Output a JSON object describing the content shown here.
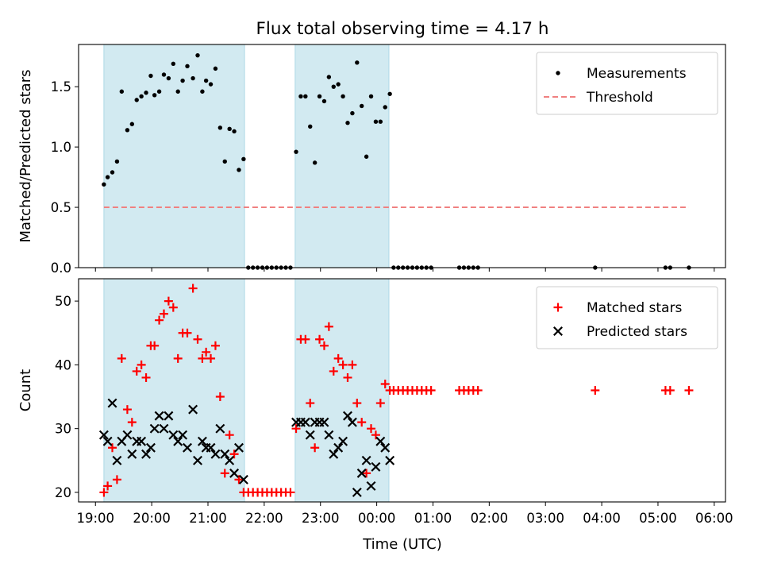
{
  "chart_data": {
    "type": "scatter",
    "title": "Flux total observing time = 4.17 h",
    "xlabel": "Time (UTC)",
    "x_ticks": [
      "19:00",
      "20:00",
      "21:00",
      "22:00",
      "23:00",
      "00:00",
      "01:00",
      "02:00",
      "03:00",
      "04:00",
      "05:00",
      "06:00"
    ],
    "shaded_intervals": [
      {
        "start": "19:09",
        "end": "21:39"
      },
      {
        "start": "22:33",
        "end": "00:13"
      }
    ],
    "shade_color": "#add8e6",
    "panels": [
      {
        "ylabel": "Matched/Predicted stars",
        "ylim": [
          0,
          1.85
        ],
        "y_ticks": [
          "0.0",
          "0.5",
          "1.0",
          "1.5"
        ],
        "legend_position": "upper right",
        "series": [
          {
            "name": "Measurements",
            "marker": "dot",
            "color": "#000000",
            "points": [
              [
                "19:09",
                0.69
              ],
              [
                "19:13",
                0.75
              ],
              [
                "19:18",
                0.79
              ],
              [
                "19:23",
                0.88
              ],
              [
                "19:28",
                1.46
              ],
              [
                "19:34",
                1.14
              ],
              [
                "19:39",
                1.19
              ],
              [
                "19:44",
                1.39
              ],
              [
                "19:49",
                1.42
              ],
              [
                "19:54",
                1.45
              ],
              [
                "19:59",
                1.59
              ],
              [
                "20:03",
                1.43
              ],
              [
                "20:08",
                1.46
              ],
              [
                "20:13",
                1.6
              ],
              [
                "20:18",
                1.57
              ],
              [
                "20:23",
                1.69
              ],
              [
                "20:28",
                1.46
              ],
              [
                "20:33",
                1.55
              ],
              [
                "20:38",
                1.67
              ],
              [
                "20:44",
                1.57
              ],
              [
                "20:49",
                1.76
              ],
              [
                "20:54",
                1.46
              ],
              [
                "20:58",
                1.55
              ],
              [
                "21:03",
                1.52
              ],
              [
                "21:08",
                1.65
              ],
              [
                "21:13",
                1.16
              ],
              [
                "21:18",
                0.88
              ],
              [
                "21:23",
                1.15
              ],
              [
                "21:28",
                1.13
              ],
              [
                "21:33",
                0.81
              ],
              [
                "21:38",
                0.9
              ],
              [
                "21:43",
                0.0
              ],
              [
                "21:48",
                0.0
              ],
              [
                "21:53",
                0.0
              ],
              [
                "21:58",
                0.0
              ],
              [
                "22:03",
                0.0
              ],
              [
                "22:08",
                0.0
              ],
              [
                "22:13",
                0.0
              ],
              [
                "22:18",
                0.0
              ],
              [
                "22:23",
                0.0
              ],
              [
                "22:28",
                0.0
              ],
              [
                "22:34",
                0.96
              ],
              [
                "22:39",
                1.42
              ],
              [
                "22:44",
                1.42
              ],
              [
                "22:49",
                1.17
              ],
              [
                "22:54",
                0.87
              ],
              [
                "22:59",
                1.42
              ],
              [
                "23:04",
                1.38
              ],
              [
                "23:09",
                1.58
              ],
              [
                "23:14",
                1.5
              ],
              [
                "23:19",
                1.52
              ],
              [
                "23:24",
                1.42
              ],
              [
                "23:29",
                1.2
              ],
              [
                "23:34",
                1.28
              ],
              [
                "23:39",
                1.7
              ],
              [
                "23:44",
                1.34
              ],
              [
                "23:49",
                0.92
              ],
              [
                "23:54",
                1.42
              ],
              [
                "23:59",
                1.21
              ],
              [
                "00:04",
                1.21
              ],
              [
                "00:09",
                1.33
              ],
              [
                "00:14",
                1.44
              ],
              [
                "00:18",
                0.0
              ],
              [
                "00:23",
                0.0
              ],
              [
                "00:28",
                0.0
              ],
              [
                "00:33",
                0.0
              ],
              [
                "00:38",
                0.0
              ],
              [
                "00:43",
                0.0
              ],
              [
                "00:48",
                0.0
              ],
              [
                "00:53",
                0.0
              ],
              [
                "00:58",
                0.0
              ],
              [
                "01:28",
                0.0
              ],
              [
                "01:33",
                0.0
              ],
              [
                "01:38",
                0.0
              ],
              [
                "01:43",
                0.0
              ],
              [
                "01:48",
                0.0
              ],
              [
                "03:53",
                0.0
              ],
              [
                "05:08",
                0.0
              ],
              [
                "05:13",
                0.0
              ],
              [
                "05:33",
                0.0
              ]
            ]
          },
          {
            "name": "Threshold",
            "marker": "dashed-line",
            "color": "#f08080",
            "value": 0.5,
            "start": "19:09",
            "end": "05:33"
          }
        ]
      },
      {
        "ylabel": "Count",
        "ylim": [
          18.5,
          53.5
        ],
        "y_ticks": [
          "20",
          "30",
          "40",
          "50"
        ],
        "legend_position": "upper right",
        "series": [
          {
            "name": "Matched stars",
            "marker": "plus",
            "color": "#ff0000",
            "points": [
              [
                "19:09",
                20
              ],
              [
                "19:13",
                21
              ],
              [
                "19:18",
                27
              ],
              [
                "19:23",
                22
              ],
              [
                "19:28",
                41
              ],
              [
                "19:34",
                33
              ],
              [
                "19:39",
                31
              ],
              [
                "19:44",
                39
              ],
              [
                "19:49",
                40
              ],
              [
                "19:54",
                38
              ],
              [
                "19:59",
                43
              ],
              [
                "20:03",
                43
              ],
              [
                "20:08",
                47
              ],
              [
                "20:13",
                48
              ],
              [
                "20:18",
                50
              ],
              [
                "20:23",
                49
              ],
              [
                "20:28",
                41
              ],
              [
                "20:33",
                45
              ],
              [
                "20:38",
                45
              ],
              [
                "20:44",
                52
              ],
              [
                "20:49",
                44
              ],
              [
                "20:54",
                41
              ],
              [
                "20:58",
                42
              ],
              [
                "21:03",
                41
              ],
              [
                "21:08",
                43
              ],
              [
                "21:13",
                35
              ],
              [
                "21:18",
                23
              ],
              [
                "21:23",
                29
              ],
              [
                "21:28",
                26
              ],
              [
                "21:33",
                22
              ],
              [
                "21:38",
                20
              ],
              [
                "21:43",
                20
              ],
              [
                "21:48",
                20
              ],
              [
                "21:53",
                20
              ],
              [
                "21:58",
                20
              ],
              [
                "22:03",
                20
              ],
              [
                "22:08",
                20
              ],
              [
                "22:13",
                20
              ],
              [
                "22:18",
                20
              ],
              [
                "22:23",
                20
              ],
              [
                "22:28",
                20
              ],
              [
                "22:34",
                30
              ],
              [
                "22:39",
                44
              ],
              [
                "22:44",
                44
              ],
              [
                "22:49",
                34
              ],
              [
                "22:54",
                27
              ],
              [
                "22:59",
                44
              ],
              [
                "23:04",
                43
              ],
              [
                "23:09",
                46
              ],
              [
                "23:14",
                39
              ],
              [
                "23:19",
                41
              ],
              [
                "23:24",
                40
              ],
              [
                "23:29",
                38
              ],
              [
                "23:34",
                40
              ],
              [
                "23:39",
                34
              ],
              [
                "23:44",
                31
              ],
              [
                "23:49",
                23
              ],
              [
                "23:54",
                30
              ],
              [
                "23:59",
                29
              ],
              [
                "00:04",
                34
              ],
              [
                "00:09",
                37
              ],
              [
                "00:14",
                36
              ],
              [
                "00:18",
                36
              ],
              [
                "00:23",
                36
              ],
              [
                "00:28",
                36
              ],
              [
                "00:33",
                36
              ],
              [
                "00:38",
                36
              ],
              [
                "00:43",
                36
              ],
              [
                "00:48",
                36
              ],
              [
                "00:53",
                36
              ],
              [
                "00:58",
                36
              ],
              [
                "01:28",
                36
              ],
              [
                "01:33",
                36
              ],
              [
                "01:38",
                36
              ],
              [
                "01:43",
                36
              ],
              [
                "01:48",
                36
              ],
              [
                "03:53",
                36
              ],
              [
                "05:08",
                36
              ],
              [
                "05:13",
                36
              ],
              [
                "05:33",
                36
              ]
            ]
          },
          {
            "name": "Predicted stars",
            "marker": "x",
            "color": "#000000",
            "points": [
              [
                "19:09",
                29
              ],
              [
                "19:13",
                28
              ],
              [
                "19:18",
                34
              ],
              [
                "19:23",
                25
              ],
              [
                "19:28",
                28
              ],
              [
                "19:34",
                29
              ],
              [
                "19:39",
                26
              ],
              [
                "19:44",
                28
              ],
              [
                "19:49",
                28
              ],
              [
                "19:54",
                26
              ],
              [
                "19:59",
                27
              ],
              [
                "20:03",
                30
              ],
              [
                "20:08",
                32
              ],
              [
                "20:13",
                30
              ],
              [
                "20:18",
                32
              ],
              [
                "20:23",
                29
              ],
              [
                "20:28",
                28
              ],
              [
                "20:33",
                29
              ],
              [
                "20:38",
                27
              ],
              [
                "20:44",
                33
              ],
              [
                "20:49",
                25
              ],
              [
                "20:54",
                28
              ],
              [
                "20:58",
                27
              ],
              [
                "21:03",
                27
              ],
              [
                "21:08",
                26
              ],
              [
                "21:13",
                30
              ],
              [
                "21:18",
                26
              ],
              [
                "21:23",
                25
              ],
              [
                "21:28",
                23
              ],
              [
                "21:33",
                27
              ],
              [
                "21:38",
                22
              ],
              [
                "22:34",
                31
              ],
              [
                "22:39",
                31
              ],
              [
                "22:44",
                31
              ],
              [
                "22:49",
                29
              ],
              [
                "22:54",
                31
              ],
              [
                "22:59",
                31
              ],
              [
                "23:04",
                31
              ],
              [
                "23:09",
                29
              ],
              [
                "23:14",
                26
              ],
              [
                "23:19",
                27
              ],
              [
                "23:24",
                28
              ],
              [
                "23:29",
                32
              ],
              [
                "23:34",
                31
              ],
              [
                "23:39",
                20
              ],
              [
                "23:44",
                23
              ],
              [
                "23:49",
                25
              ],
              [
                "23:54",
                21
              ],
              [
                "23:59",
                24
              ],
              [
                "00:04",
                28
              ],
              [
                "00:09",
                27
              ],
              [
                "00:14",
                25
              ]
            ]
          }
        ]
      }
    ]
  }
}
